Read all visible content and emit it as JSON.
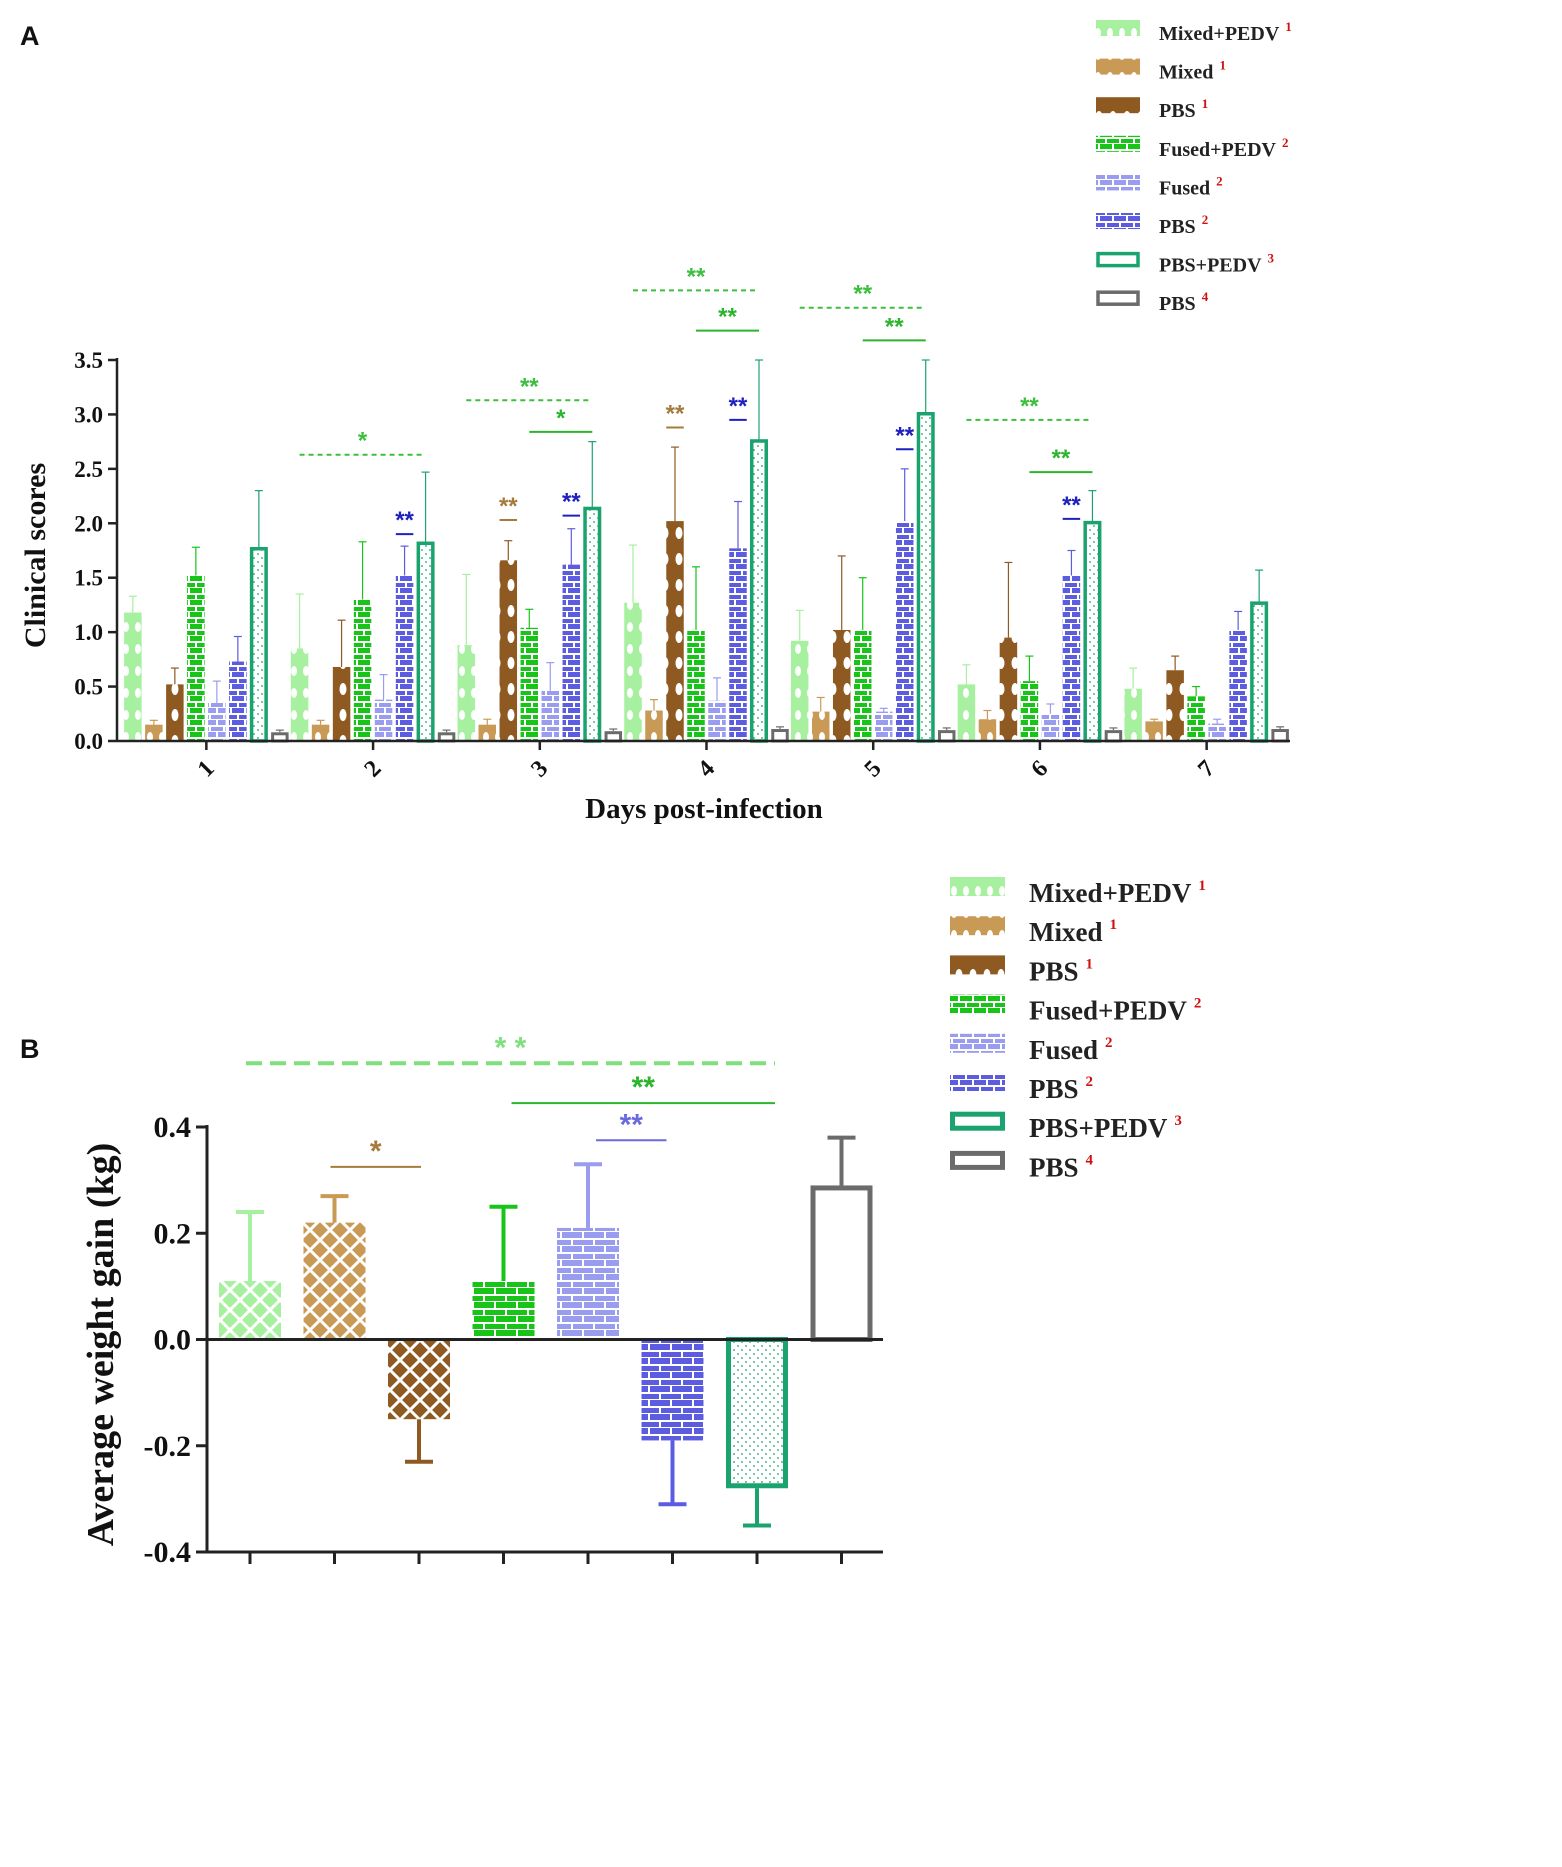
{
  "panels": {
    "a": "A",
    "b": "B"
  },
  "series_colors": {
    "Mixed+PEDV": "#a6f0a0",
    "Mixed": "#c99a55",
    "PBS1": "#8e5a22",
    "Fused+PEDV": "#18c418",
    "Fused": "#9a9cf0",
    "PBS2": "#5c5ce0",
    "PBS+PEDV": "#1aa36e",
    "PBS4": "#6b6b6b"
  },
  "sig_colors": {
    "green_light": "#7ee07e",
    "green": "#2cb52c",
    "green_dash": "#3cbf3c",
    "tan": "#a57b3d",
    "blue": "#2020c0",
    "blue_light": "#6a6ae0"
  },
  "chart_data": [
    {
      "type": "bar",
      "panel": "A",
      "title": "",
      "xlabel": "Days post-infection",
      "ylabel": "Clinical scores",
      "ylim": [
        0,
        3.5
      ],
      "yticks": [
        "0.0",
        "0.5",
        "1.0",
        "1.5",
        "2.0",
        "2.5",
        "3.0",
        "3.5"
      ],
      "categories": [
        "1",
        "2",
        "3",
        "4",
        "5",
        "6",
        "7"
      ],
      "legend": {
        "position": "top-right",
        "entries": [
          {
            "name": "Mixed+PEDV",
            "sup": "1"
          },
          {
            "name": "Mixed",
            "sup": "1"
          },
          {
            "name": "PBS",
            "sup": "1"
          },
          {
            "name": "Fused+PEDV",
            "sup": "2"
          },
          {
            "name": "Fused",
            "sup": "2"
          },
          {
            "name": "PBS",
            "sup": "2"
          },
          {
            "name": "PBS+PEDV",
            "sup": "3"
          },
          {
            "name": "PBS",
            "sup": "4"
          }
        ]
      },
      "series": [
        {
          "name": "Mixed+PEDV 1",
          "values": [
            1.18,
            0.85,
            0.88,
            1.27,
            0.92,
            0.52,
            0.48
          ],
          "errors": [
            0.15,
            0.5,
            0.65,
            0.53,
            0.28,
            0.18,
            0.19
          ]
        },
        {
          "name": "Mixed 1",
          "values": [
            0.15,
            0.15,
            0.15,
            0.28,
            0.27,
            0.2,
            0.18
          ],
          "errors": [
            0.04,
            0.04,
            0.05,
            0.1,
            0.13,
            0.08,
            0.02
          ]
        },
        {
          "name": "PBS 1",
          "values": [
            0.52,
            0.68,
            1.66,
            2.02,
            1.02,
            0.95,
            0.65
          ],
          "errors": [
            0.15,
            0.43,
            0.18,
            0.68,
            0.68,
            0.69,
            0.13
          ]
        },
        {
          "name": "Fused+PEDV 2",
          "values": [
            1.52,
            1.3,
            1.04,
            1.02,
            1.02,
            0.55,
            0.41
          ],
          "errors": [
            0.26,
            0.53,
            0.17,
            0.58,
            0.48,
            0.23,
            0.09
          ]
        },
        {
          "name": "Fused 2",
          "values": [
            0.35,
            0.38,
            0.46,
            0.37,
            0.27,
            0.25,
            0.16
          ],
          "errors": [
            0.2,
            0.23,
            0.26,
            0.21,
            0.03,
            0.09,
            0.04
          ]
        },
        {
          "name": "PBS 2",
          "values": [
            0.73,
            1.52,
            1.62,
            1.77,
            2.02,
            1.52,
            1.02
          ],
          "errors": [
            0.23,
            0.27,
            0.33,
            0.43,
            0.48,
            0.23,
            0.17
          ]
        },
        {
          "name": "PBS+PEDV 3",
          "values": [
            1.78,
            1.83,
            2.15,
            2.77,
            3.02,
            2.02,
            1.28
          ],
          "errors": [
            0.52,
            0.64,
            0.6,
            0.73,
            0.48,
            0.28,
            0.29
          ]
        },
        {
          "name": "PBS 4",
          "values": [
            0.08,
            0.08,
            0.09,
            0.11,
            0.1,
            0.1,
            0.11
          ],
          "errors": [
            0.02,
            0.02,
            0.02,
            0.02,
            0.02,
            0.02,
            0.02
          ]
        }
      ],
      "annotations": [
        {
          "text": "*",
          "day": 2,
          "level": 2.63,
          "from": 0,
          "to": 6,
          "style": "dashed",
          "color": "green_dash"
        },
        {
          "text": "**",
          "day": 2,
          "level": 1.9,
          "from": 5,
          "to": 5,
          "style": "solid",
          "color": "blue"
        },
        {
          "text": "**",
          "day": 3,
          "level": 3.13,
          "from": 0,
          "to": 6,
          "style": "dashed",
          "color": "green_dash"
        },
        {
          "text": "*",
          "day": 3,
          "level": 2.84,
          "from": 3,
          "to": 6,
          "style": "solid",
          "color": "green"
        },
        {
          "text": "**",
          "day": 3,
          "level": 2.03,
          "from": 2,
          "to": 2,
          "style": "solid",
          "color": "tan"
        },
        {
          "text": "**",
          "day": 3,
          "level": 2.07,
          "from": 5,
          "to": 5,
          "style": "solid",
          "color": "blue"
        },
        {
          "text": "**",
          "day": 4,
          "level": 4.14,
          "from": 0,
          "to": 6,
          "style": "dashed",
          "color": "green_dash"
        },
        {
          "text": "**",
          "day": 4,
          "level": 3.77,
          "from": 3,
          "to": 6,
          "style": "solid",
          "color": "green"
        },
        {
          "text": "**",
          "day": 4,
          "level": 2.88,
          "from": 2,
          "to": 2,
          "style": "solid",
          "color": "tan"
        },
        {
          "text": "**",
          "day": 4,
          "level": 2.95,
          "from": 5,
          "to": 5,
          "style": "solid",
          "color": "blue"
        },
        {
          "text": "**",
          "day": 5,
          "level": 3.98,
          "from": 0,
          "to": 6,
          "style": "dashed",
          "color": "green_dash"
        },
        {
          "text": "**",
          "day": 5,
          "level": 3.68,
          "from": 3,
          "to": 6,
          "style": "solid",
          "color": "green"
        },
        {
          "text": "**",
          "day": 5,
          "level": 2.68,
          "from": 5,
          "to": 5,
          "style": "solid",
          "color": "blue"
        },
        {
          "text": "**",
          "day": 6,
          "level": 2.95,
          "from": 0,
          "to": 6,
          "style": "dashed",
          "color": "green_dash"
        },
        {
          "text": "**",
          "day": 6,
          "level": 2.47,
          "from": 3,
          "to": 6,
          "style": "solid",
          "color": "green"
        },
        {
          "text": "**",
          "day": 6,
          "level": 2.04,
          "from": 5,
          "to": 5,
          "style": "solid",
          "color": "blue"
        }
      ]
    },
    {
      "type": "bar",
      "panel": "B",
      "title": "",
      "xlabel": "",
      "ylabel": "Average weight gain (kg)",
      "ylim": [
        -0.4,
        0.4
      ],
      "yticks": [
        "-0.4",
        "-0.2",
        "0.0",
        "0.2",
        "0.4"
      ],
      "legend": {
        "position": "top-right",
        "entries": [
          {
            "name": "Mixed+PEDV",
            "sup": "1"
          },
          {
            "name": "Mixed",
            "sup": "1"
          },
          {
            "name": "PBS",
            "sup": "1"
          },
          {
            "name": "Fused+PEDV",
            "sup": "2"
          },
          {
            "name": "Fused",
            "sup": "2"
          },
          {
            "name": "PBS",
            "sup": "2"
          },
          {
            "name": "PBS+PEDV",
            "sup": "3"
          },
          {
            "name": "PBS",
            "sup": "4"
          }
        ]
      },
      "groups": [
        "Mixed+PEDV 1",
        "Mixed 1",
        "PBS 1",
        "Fused+PEDV 2",
        "Fused 2",
        "PBS 2",
        "PBS+PEDV 3",
        "PBS 4"
      ],
      "values": [
        0.11,
        0.22,
        -0.15,
        0.11,
        0.21,
        -0.19,
        -0.28,
        0.29
      ],
      "errors": [
        0.13,
        0.05,
        0.08,
        0.14,
        0.12,
        0.12,
        0.07,
        0.09
      ],
      "annotations": [
        {
          "text": "* *",
          "level": 0.52,
          "from": 0,
          "to": 6,
          "style": "dashed",
          "color": "green_light"
        },
        {
          "text": "**",
          "level": 0.445,
          "from": 3,
          "to": 6,
          "style": "solid",
          "color": "green"
        },
        {
          "text": "*",
          "level": 0.325,
          "from": 1,
          "to": 2,
          "style": "solid",
          "color": "tan"
        },
        {
          "text": "**",
          "level": 0.375,
          "from": 4,
          "to": 5,
          "style": "solid",
          "color": "blue_light"
        }
      ]
    }
  ]
}
